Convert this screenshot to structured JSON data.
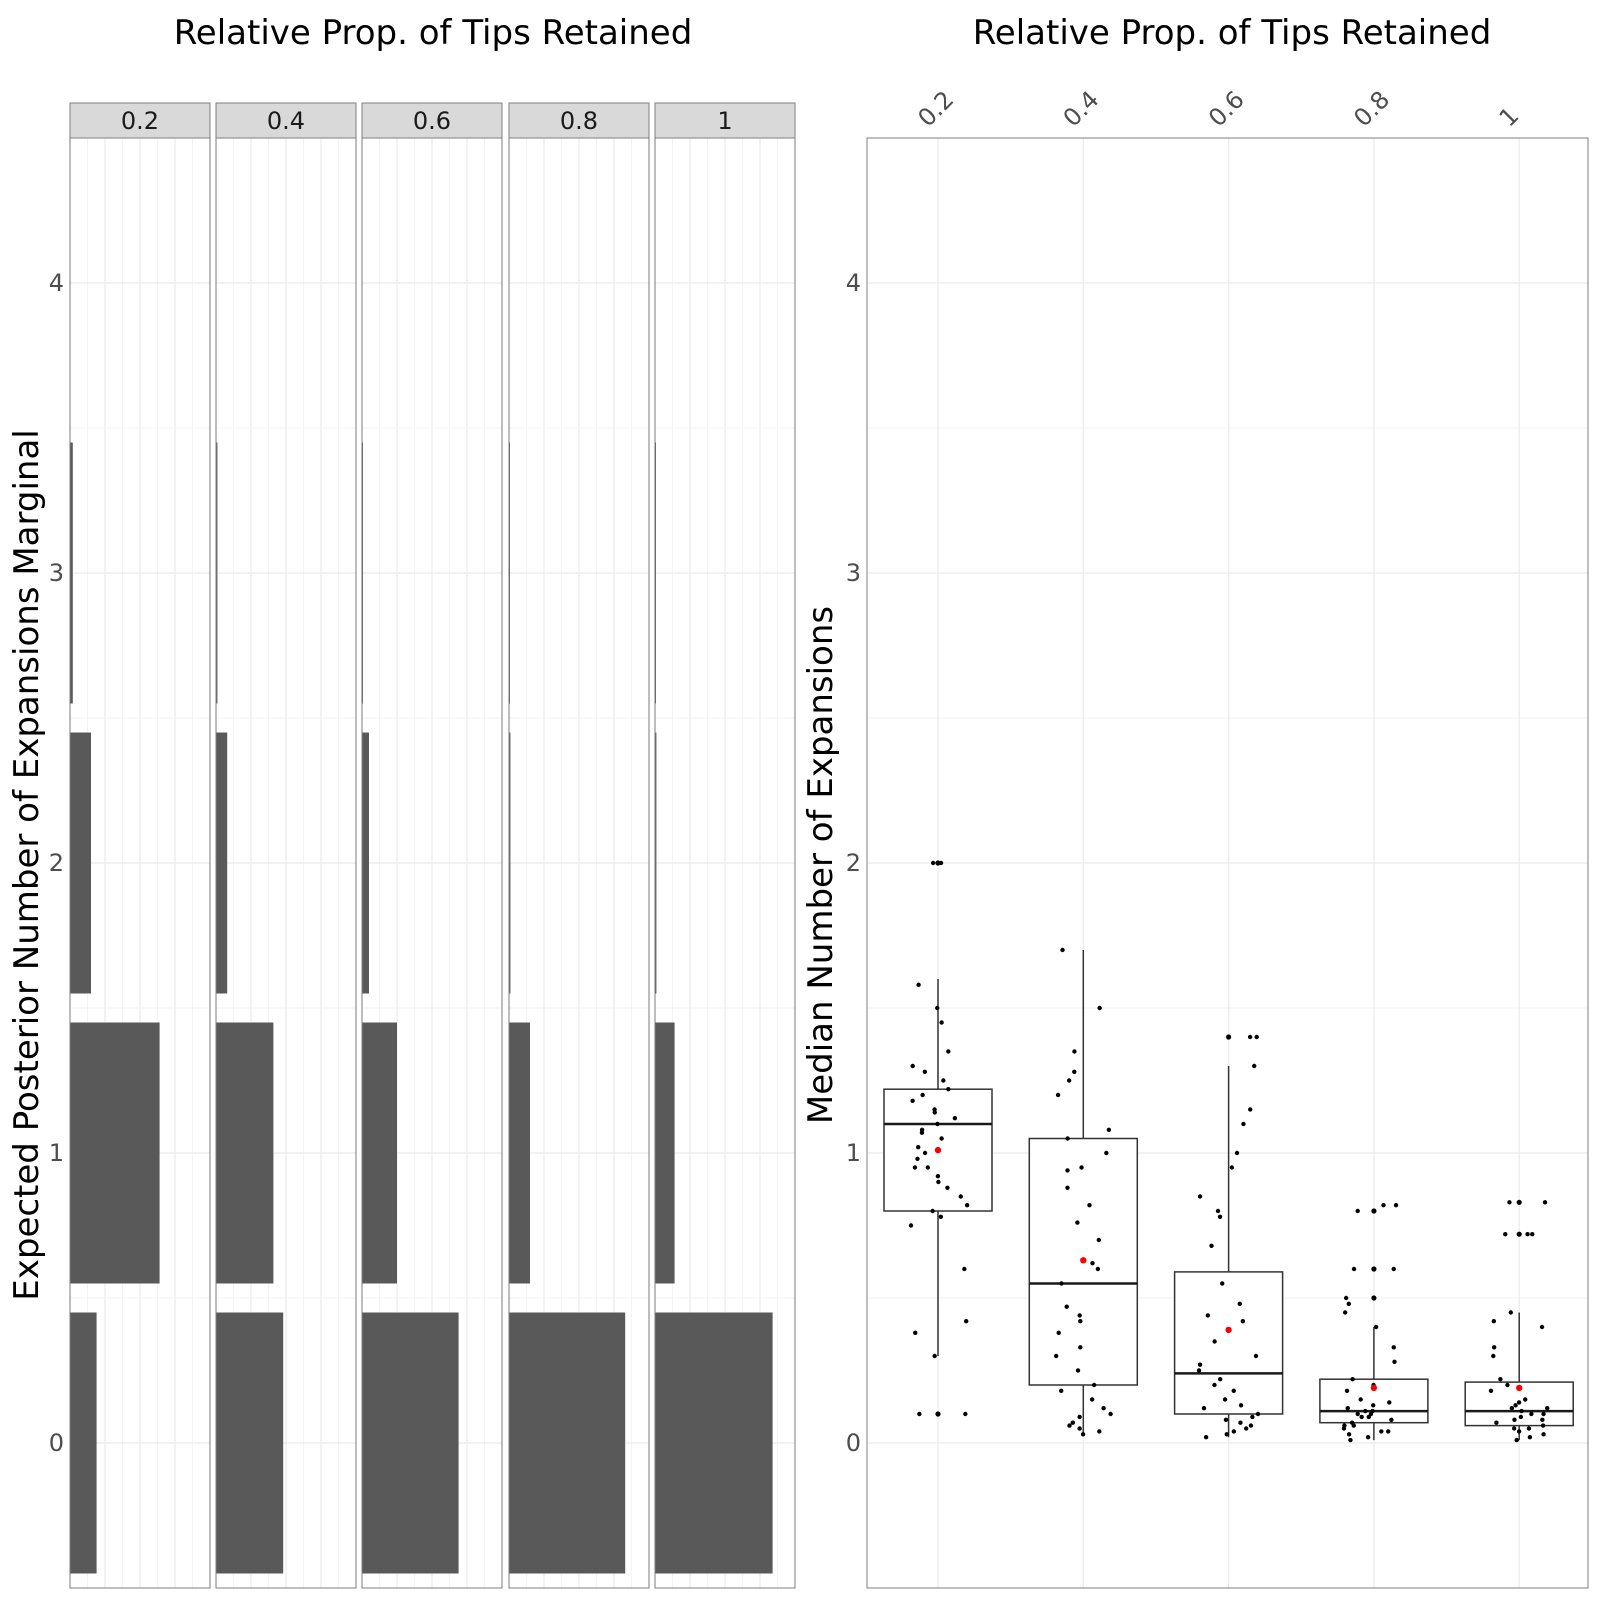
{
  "chart_data": [
    {
      "type": "bar",
      "orientation": "horizontal",
      "title": "Relative Prop. of Tips Retained",
      "ylabel": "Expected Posterior Number of Expansions Marginal",
      "xlabel": "",
      "ylim": [
        -0.5,
        4.5
      ],
      "yticks": [
        "0",
        "1",
        "2",
        "3",
        "4"
      ],
      "facet_labels": [
        "0.2",
        "0.4",
        "0.6",
        "0.8",
        "1"
      ],
      "categories": [
        0,
        1,
        2,
        3
      ],
      "facets": [
        {
          "name": "0.2",
          "proportions": [
            0.19,
            0.64,
            0.15,
            0.02
          ]
        },
        {
          "name": "0.4",
          "proportions": [
            0.48,
            0.41,
            0.08,
            0.01
          ]
        },
        {
          "name": "0.6",
          "proportions": [
            0.69,
            0.25,
            0.05,
            0.0
          ]
        },
        {
          "name": "0.8",
          "proportions": [
            0.83,
            0.15,
            0.01,
            0.0
          ]
        },
        {
          "name": "1",
          "proportions": [
            0.84,
            0.14,
            0.01,
            0.0
          ]
        }
      ],
      "grid": true
    },
    {
      "type": "box",
      "title": "Relative Prop. of Tips Retained",
      "ylabel": "Median Number of Expansions",
      "xlabel": "",
      "ylim": [
        -0.5,
        4.5
      ],
      "yticks": [
        "0",
        "1",
        "2",
        "3",
        "4"
      ],
      "categories": [
        "0.2",
        "0.4",
        "0.6",
        "0.8",
        "1"
      ],
      "boxes": [
        {
          "name": "0.2",
          "lower_whisker": 0.3,
          "q1": 0.8,
          "median": 1.1,
          "q3": 1.22,
          "upper_whisker": 1.6,
          "mean": 1.01,
          "outliers": [
            0.1,
            2.0
          ]
        },
        {
          "name": "0.4",
          "lower_whisker": 0.03,
          "q1": 0.2,
          "median": 0.55,
          "q3": 1.05,
          "upper_whisker": 1.7,
          "mean": 0.63,
          "outliers": []
        },
        {
          "name": "0.6",
          "lower_whisker": 0.02,
          "q1": 0.1,
          "median": 0.24,
          "q3": 0.59,
          "upper_whisker": 1.3,
          "mean": 0.39,
          "outliers": [
            1.4
          ]
        },
        {
          "name": "0.8",
          "lower_whisker": 0.01,
          "q1": 0.07,
          "median": 0.11,
          "q3": 0.22,
          "upper_whisker": 0.4,
          "mean": 0.19,
          "outliers": [
            0.5,
            0.6,
            0.8
          ]
        },
        {
          "name": "1",
          "lower_whisker": 0.01,
          "q1": 0.06,
          "median": 0.11,
          "q3": 0.21,
          "upper_whisker": 0.45,
          "mean": 0.19,
          "outliers": [
            0.72,
            0.83
          ]
        }
      ],
      "points": [
        [
          1.1,
          1.05,
          0.95,
          1.2,
          1.15,
          0.9,
          1.3,
          0.85,
          1.25,
          0.8,
          1.0,
          1.12,
          0.88,
          1.18,
          0.92,
          1.08,
          1.22,
          0.98,
          1.45,
          1.5,
          1.58,
          0.75,
          0.6,
          0.42,
          0.38,
          0.3,
          0.1,
          0.1,
          2.0,
          2.0,
          1.35,
          1.28,
          1.02,
          0.82,
          1.14,
          1.07,
          0.78,
          0.95
        ],
        [
          1.7,
          1.5,
          1.35,
          1.28,
          1.2,
          1.08,
          1.05,
          1.0,
          0.95,
          0.88,
          0.82,
          0.76,
          0.7,
          0.62,
          0.55,
          0.47,
          0.42,
          0.38,
          0.3,
          0.25,
          0.2,
          0.15,
          0.1,
          0.07,
          0.05,
          0.03,
          0.09,
          0.12,
          0.33,
          0.44,
          1.25,
          0.94,
          0.6,
          0.18,
          0.06,
          0.04
        ],
        [
          1.4,
          1.4,
          1.3,
          1.15,
          1.1,
          1.0,
          0.95,
          0.85,
          0.8,
          0.78,
          0.68,
          0.55,
          0.48,
          0.42,
          0.35,
          0.3,
          0.25,
          0.22,
          0.18,
          0.15,
          0.12,
          0.1,
          0.08,
          0.06,
          0.04,
          0.03,
          0.02,
          0.05,
          0.09,
          0.2,
          0.27,
          0.44,
          0.13,
          0.07
        ],
        [
          0.82,
          0.82,
          0.8,
          0.6,
          0.6,
          0.5,
          0.48,
          0.45,
          0.4,
          0.33,
          0.28,
          0.22,
          0.2,
          0.18,
          0.15,
          0.13,
          0.12,
          0.11,
          0.1,
          0.09,
          0.08,
          0.07,
          0.06,
          0.05,
          0.04,
          0.03,
          0.02,
          0.01,
          0.11,
          0.09,
          0.06,
          0.14,
          0.1,
          0.04
        ],
        [
          0.83,
          0.83,
          0.72,
          0.72,
          0.72,
          0.45,
          0.42,
          0.4,
          0.33,
          0.3,
          0.22,
          0.2,
          0.18,
          0.15,
          0.13,
          0.12,
          0.11,
          0.1,
          0.09,
          0.08,
          0.07,
          0.06,
          0.05,
          0.04,
          0.03,
          0.02,
          0.01,
          0.12,
          0.08,
          0.05,
          0.14,
          0.1
        ]
      ],
      "grid": true
    }
  ]
}
